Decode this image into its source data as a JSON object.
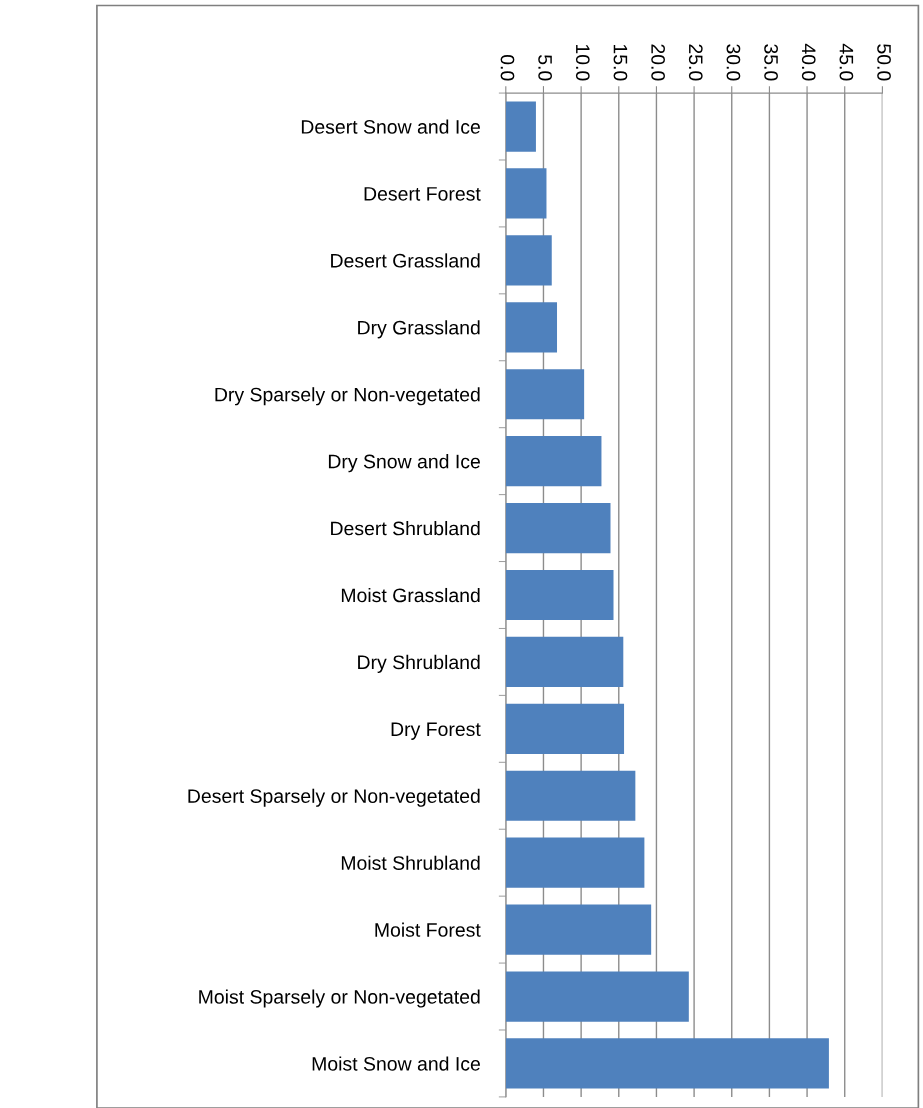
{
  "chart_data": {
    "type": "bar",
    "orientation": "horizontal",
    "categories": [
      "Desert Snow and Ice",
      "Desert Forest",
      "Desert Grassland",
      "Dry Grassland",
      "Dry Sparsely or Non-vegetated",
      "Dry Snow and Ice",
      "Desert Shrubland",
      "Moist Grassland",
      "Dry Shrubland",
      "Dry Forest",
      "Desert Sparsely or Non-vegetated",
      "Moist Shrubland",
      "Moist Forest",
      "Moist Sparsely or Non-vegetated",
      "Moist Snow and Ice"
    ],
    "values": [
      4.0,
      5.4,
      6.1,
      6.8,
      10.4,
      12.7,
      13.9,
      14.3,
      15.6,
      15.7,
      17.2,
      18.4,
      19.3,
      24.3,
      42.9
    ],
    "color": "#4f81bd",
    "xlim": [
      0,
      50
    ],
    "xticks": [
      {
        "value": 0,
        "label": "0.0"
      },
      {
        "value": 5,
        "label": "5.0"
      },
      {
        "value": 10,
        "label": "10.0"
      },
      {
        "value": 15,
        "label": "15.0"
      },
      {
        "value": 20,
        "label": "20.0"
      },
      {
        "value": 25,
        "label": "25.0"
      },
      {
        "value": 30,
        "label": "30.0"
      },
      {
        "value": 35,
        "label": "35.0"
      },
      {
        "value": 40,
        "label": "40.0"
      },
      {
        "value": 45,
        "label": "45.0"
      },
      {
        "value": 50,
        "label": "50.0"
      }
    ],
    "grid": "x"
  }
}
